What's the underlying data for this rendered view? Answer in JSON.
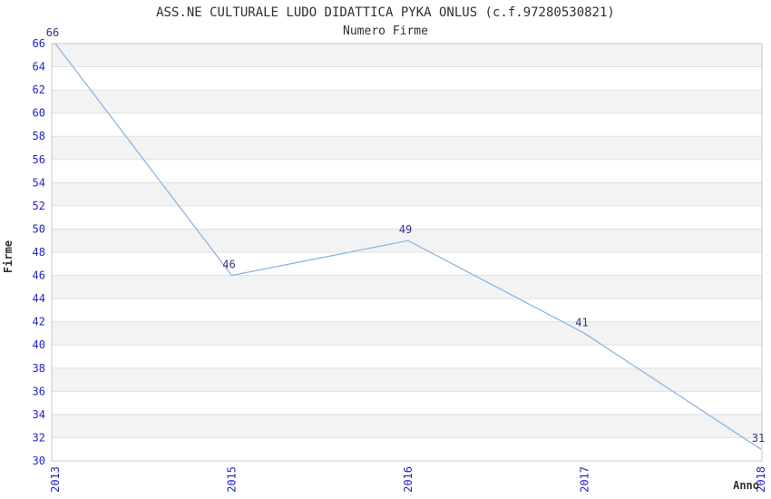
{
  "title": "ASS.NE CULTURALE LUDO DIDATTICA PYKA ONLUS (c.f.97280530821)",
  "subtitle": "Numero Firme",
  "chart_data": {
    "type": "line",
    "categories": [
      "2013",
      "2015",
      "2016",
      "2017",
      "2018"
    ],
    "values": [
      66,
      46,
      49,
      41,
      31
    ],
    "title": "ASS.NE CULTURALE LUDO DIDATTICA PYKA ONLUS (c.f.97280530821)",
    "subtitle": "Numero Firme",
    "xlabel": "Anno",
    "ylabel": "Firme",
    "ylim": [
      30,
      66
    ],
    "ytick_step": 2,
    "grid": "horizontal",
    "legend": "none",
    "point_labels": [
      66,
      46,
      49,
      41,
      31
    ],
    "colors": {
      "line": "#84b1e2",
      "tick_label": "#2323cc",
      "point_label": "#333388",
      "band_fill": "#f3f3f3",
      "gridline": "#e0e0e0",
      "plot_border": "#c9c9c9",
      "title_text": "#303030",
      "background": "#ffffff"
    }
  }
}
